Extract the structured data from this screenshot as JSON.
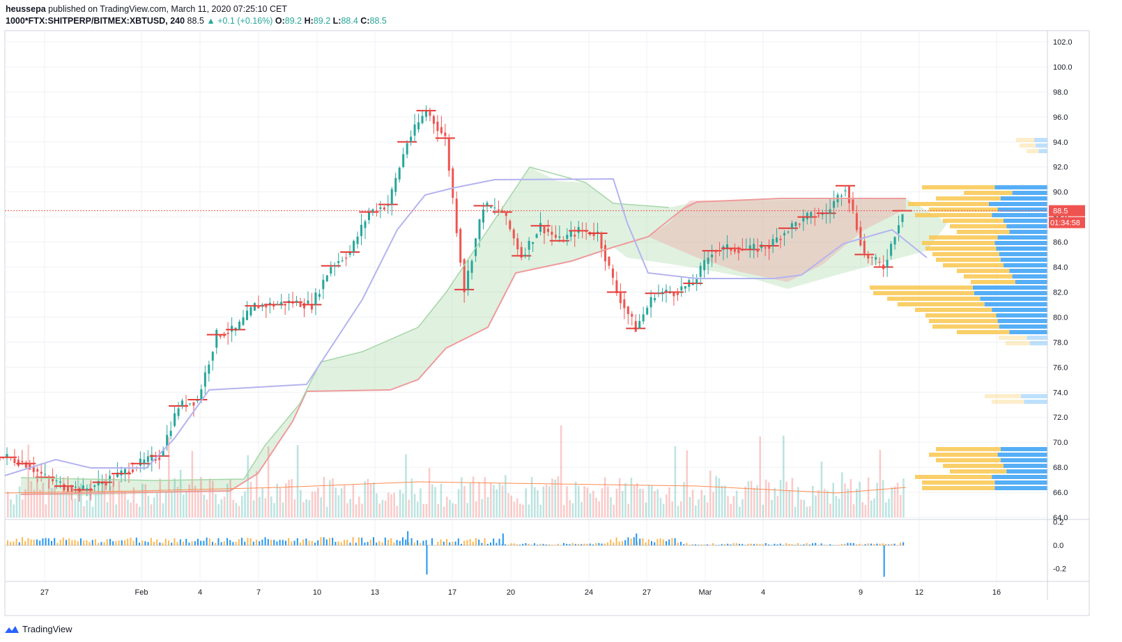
{
  "header": {
    "user": "heussepa",
    "published_text": "published on TradingView.com, March 11, 2020 07:25:10 CET",
    "symbol": "1000*FTX:SHITPERP/BITMEX:XBTUSD",
    "interval": "240",
    "last": "88.5",
    "change": "▲ +0.1 (+0.16%)",
    "o_label": "O:",
    "o_val": "89.2",
    "h_label": "H:",
    "h_val": "89.2",
    "l_label": "L:",
    "l_val": "88.4",
    "c_label": "C:",
    "c_val": "88.5"
  },
  "price_badge": "88.5",
  "countdown_badge": "01:34:58",
  "footer_brand": "TradingView",
  "colors": {
    "up": "#26a69a",
    "down": "#ef5350",
    "candle_up": "#26a69a",
    "candle_down": "#ef5350",
    "vwap_red": "#e53935",
    "kijun": "#b3b3f0",
    "cloud_green": "#a5d6a7",
    "cloud_red": "#ef9a9a",
    "volume_profile_up": "#42a5f5",
    "volume_profile_down": "#f9c74f",
    "osc_up": "#2196f3",
    "osc_down": "#ffb74d"
  },
  "chart_data": [
    {
      "type": "line",
      "panel": "price",
      "series": [
        {
          "values": [
            {
              "x": "Jan 24",
              "y": 68.8
            },
            {
              "x": "Jan 25",
              "y": 68.3
            },
            {
              "x": "Jan 26",
              "y": 67.2
            },
            {
              "x": "Jan 27",
              "y": 66.5
            },
            {
              "x": "Jan 28",
              "y": 66.2
            },
            {
              "x": "Jan 29",
              "y": 66.8
            },
            {
              "x": "Jan 30",
              "y": 67.5
            },
            {
              "x": "Jan 31",
              "y": 68.3
            },
            {
              "x": "Feb 1",
              "y": 68.9
            },
            {
              "x": "Feb 2",
              "y": 72.9
            },
            {
              "x": "Feb 3",
              "y": 73.4
            },
            {
              "x": "Feb 4",
              "y": 78.6
            },
            {
              "x": "Feb 5",
              "y": 79.0
            },
            {
              "x": "Feb 6",
              "y": 80.9
            },
            {
              "x": "Feb 7",
              "y": 81.0
            },
            {
              "x": "Feb 8",
              "y": 81.2
            },
            {
              "x": "Feb 9",
              "y": 81.0
            },
            {
              "x": "Feb 10",
              "y": 84.1
            },
            {
              "x": "Feb 11",
              "y": 85.2
            },
            {
              "x": "Feb 12",
              "y": 88.4
            },
            {
              "x": "Feb 13",
              "y": 89.0
            },
            {
              "x": "Feb 14",
              "y": 94.0
            },
            {
              "x": "Feb 15",
              "y": 96.5
            },
            {
              "x": "Feb 16",
              "y": 94.3
            },
            {
              "x": "Feb 17",
              "y": 82.2
            },
            {
              "x": "Feb 18",
              "y": 88.9
            },
            {
              "x": "Feb 19",
              "y": 88.4
            },
            {
              "x": "Feb 20",
              "y": 84.9
            },
            {
              "x": "Feb 21",
              "y": 87.3
            },
            {
              "x": "Feb 22",
              "y": 86.1
            },
            {
              "x": "Feb 23",
              "y": 86.9
            },
            {
              "x": "Feb 24",
              "y": 86.7
            },
            {
              "x": "Feb 25",
              "y": 82.0
            },
            {
              "x": "Feb 26",
              "y": 79.1
            },
            {
              "x": "Feb 27",
              "y": 81.9
            },
            {
              "x": "Feb 28",
              "y": 82.0
            },
            {
              "x": "Feb 29",
              "y": 82.7
            },
            {
              "x": "Mar 1",
              "y": 85.3
            },
            {
              "x": "Mar 2",
              "y": 85.5
            },
            {
              "x": "Mar 3",
              "y": 85.4
            },
            {
              "x": "Mar 4",
              "y": 85.7
            },
            {
              "x": "Mar 5",
              "y": 87.1
            },
            {
              "x": "Mar 6",
              "y": 88.0
            },
            {
              "x": "Mar 7",
              "y": 88.3
            },
            {
              "x": "Mar 8",
              "y": 90.5
            },
            {
              "x": "Mar 9",
              "y": 85.0
            },
            {
              "x": "Mar 10",
              "y": 84.0
            },
            {
              "x": "Mar 11",
              "y": 88.5
            }
          ]
        }
      ],
      "ylim": [
        64.0,
        102.0
      ],
      "y_ticks": [
        "102.0",
        "100.0",
        "98.0",
        "96.0",
        "94.0",
        "92.0",
        "90.0",
        "88.0",
        "86.0",
        "84.0",
        "82.0",
        "80.0",
        "78.0",
        "76.0",
        "74.0",
        "72.0",
        "70.0",
        "68.0",
        "66.0",
        "64.0"
      ],
      "x_ticks": [
        "27",
        "Feb",
        "4",
        "7",
        "10",
        "13",
        "17",
        "20",
        "24",
        "27",
        "Mar",
        "4",
        "9",
        "12",
        "16"
      ],
      "grid": true
    },
    {
      "type": "bar",
      "panel": "oscillator",
      "ylim": [
        -0.3,
        0.2
      ],
      "y_ticks": [
        "0.2",
        "0.0",
        "-0.2"
      ],
      "values": [
        {
          "x": "Feb 14",
          "y": 0.12
        },
        {
          "x": "Feb 15",
          "y": -0.25
        },
        {
          "x": "Feb 19",
          "y": 0.1
        },
        {
          "x": "Feb 26",
          "y": 0.1
        },
        {
          "x": "Mar 10",
          "y": -0.27
        }
      ]
    }
  ]
}
